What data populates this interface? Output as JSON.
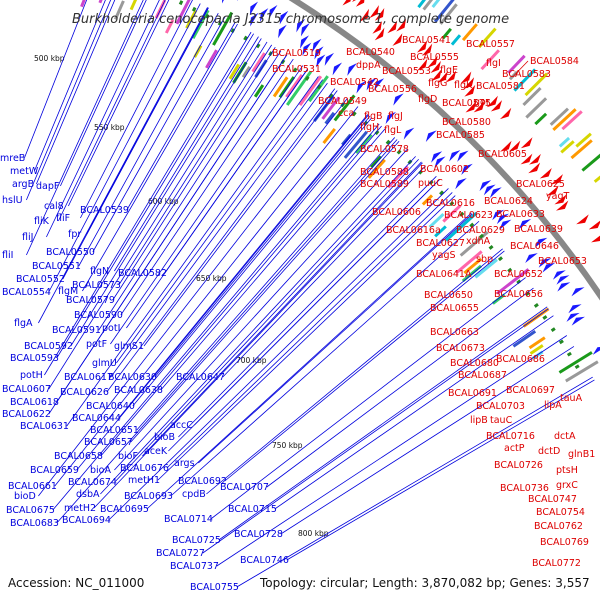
{
  "title": "Burkholderia cenocepacia J2315 chromosome 1, complete genome",
  "accession": "Accession: NC_011000",
  "summary": "Topology: circular; Length: 3,870,082 bp; Genes: 3,557",
  "colors": {
    "left_labels": "#0000dd",
    "right_labels": "#dd0000",
    "backbone": "#888888"
  },
  "scale_ticks": [
    "500 kbp",
    "550 kbp",
    "600 kbp",
    "650 kbp",
    "700 kbp",
    "750 kbp",
    "800 kbp"
  ],
  "left_labels": [
    [
      "mreB",
      0,
      161
    ],
    [
      "metW",
      10,
      174
    ],
    [
      "argB",
      12,
      187
    ],
    [
      "dapF",
      36,
      189
    ],
    [
      "hslU",
      2,
      203
    ],
    [
      "cal8",
      44,
      209
    ],
    [
      "fliK",
      34,
      224
    ],
    [
      "fliF",
      56,
      221
    ],
    [
      "BCAL0539",
      80,
      213
    ],
    [
      "fliJ",
      22,
      240
    ],
    [
      "fpr",
      68,
      237
    ],
    [
      "fliI",
      2,
      258
    ],
    [
      "BCAL0550",
      46,
      255
    ],
    [
      "BCAL0551",
      32,
      269
    ],
    [
      "flgN",
      90,
      274
    ],
    [
      "BCAL0582",
      118,
      276
    ],
    [
      "BCAL0552",
      16,
      282
    ],
    [
      "BCAL0573",
      72,
      288
    ],
    [
      "BCAL0554",
      2,
      295
    ],
    [
      "flgM",
      58,
      294
    ],
    [
      "BCAL0579",
      66,
      303
    ],
    [
      "BCAL0590",
      74,
      318
    ],
    [
      "flgA",
      14,
      326
    ],
    [
      "BCAL0591",
      52,
      333
    ],
    [
      "potI",
      102,
      331
    ],
    [
      "BCAL0592",
      24,
      349
    ],
    [
      "potF",
      86,
      347
    ],
    [
      "glmS1",
      114,
      349
    ],
    [
      "BCAL0593",
      10,
      361
    ],
    [
      "glmU",
      92,
      366
    ],
    [
      "potH",
      20,
      378
    ],
    [
      "BCAL0617",
      64,
      380
    ],
    [
      "BCAL0630",
      108,
      380
    ],
    [
      "BCAL0647",
      176,
      380
    ],
    [
      "BCAL0607",
      2,
      392
    ],
    [
      "BCAL0626",
      60,
      395
    ],
    [
      "BCAL0638",
      114,
      393
    ],
    [
      "BCAL0618",
      10,
      405
    ],
    [
      "BCAL0640",
      86,
      409
    ],
    [
      "BCAL0622",
      2,
      417
    ],
    [
      "BCAL0644",
      72,
      421
    ],
    [
      "BCAL0631",
      20,
      429
    ],
    [
      "accC",
      170,
      428
    ],
    [
      "BCAL0651",
      90,
      433
    ],
    [
      "bioB",
      154,
      440
    ],
    [
      "BCAL0658",
      54,
      459
    ],
    [
      "BCAL0657",
      84,
      445
    ],
    [
      "bioF",
      118,
      459
    ],
    [
      "aceK",
      144,
      454
    ],
    [
      "args",
      174,
      466
    ],
    [
      "BCAL0659",
      30,
      473
    ],
    [
      "bioA",
      90,
      473
    ],
    [
      "BCAL0676",
      120,
      471
    ],
    [
      "BCAL0661",
      8,
      489
    ],
    [
      "BCAL0674",
      68,
      485
    ],
    [
      "metH1",
      128,
      483
    ],
    [
      "BCAL0692",
      178,
      484
    ],
    [
      "BCAL0707",
      220,
      490
    ],
    [
      "bioD",
      14,
      499
    ],
    [
      "dsbA",
      76,
      497
    ],
    [
      "BCAL0693",
      124,
      499
    ],
    [
      "cpdB",
      182,
      497
    ],
    [
      "BCAL0675",
      6,
      513
    ],
    [
      "metH2",
      64,
      511
    ],
    [
      "BCAL0695",
      100,
      512
    ],
    [
      "BCAL0715",
      228,
      512
    ],
    [
      "BCAL0683",
      10,
      526
    ],
    [
      "BCAL0694",
      62,
      523
    ],
    [
      "BCAL0714",
      164,
      522
    ],
    [
      "BCAL0728",
      234,
      537
    ],
    [
      "BCAL0725",
      172,
      543
    ],
    [
      "BCAL0727",
      156,
      556
    ],
    [
      "BCAL0746",
      240,
      563
    ],
    [
      "BCAL0737",
      170,
      569
    ],
    [
      "BCAL0755",
      190,
      590
    ]
  ],
  "right_labels": [
    [
      "BCAL0519",
      272,
      56
    ],
    [
      "BCAL0540",
      346,
      55
    ],
    [
      "BCAL0541",
      402,
      43
    ],
    [
      "BCAL0557",
      466,
      47
    ],
    [
      "BCAL0555",
      410,
      60
    ],
    [
      "BCAL0584",
      530,
      64
    ],
    [
      "BCAL0531",
      272,
      72
    ],
    [
      "dppA",
      356,
      68
    ],
    [
      "BCAL0553",
      382,
      74
    ],
    [
      "flgE",
      440,
      73
    ],
    [
      "flgI",
      486,
      66
    ],
    [
      "BCAL0583",
      502,
      77
    ],
    [
      "BCAL0542",
      330,
      85
    ],
    [
      "flgG",
      428,
      86
    ],
    [
      "flgK",
      454,
      88
    ],
    [
      "BCAL0581",
      476,
      89
    ],
    [
      "BCAL0556",
      368,
      92
    ],
    [
      "flgD",
      418,
      102
    ],
    [
      "BCAL0575",
      442,
      106
    ],
    [
      "gor",
      474,
      105
    ],
    [
      "BCAL0549",
      318,
      104
    ],
    [
      "cca",
      338,
      116
    ],
    [
      "flgB",
      364,
      119
    ],
    [
      "flgJ",
      388,
      119
    ],
    [
      "BCAL0580",
      442,
      125
    ],
    [
      "flgH",
      360,
      130
    ],
    [
      "flgL",
      384,
      133
    ],
    [
      "BCAL0585",
      436,
      138
    ],
    [
      "BCAL0578",
      360,
      152
    ],
    [
      "BCAL0605",
      478,
      157
    ],
    [
      "BCAL0588",
      360,
      175
    ],
    [
      "BCAL0602",
      420,
      172
    ],
    [
      "BCAL0589",
      360,
      187
    ],
    [
      "puuC",
      418,
      186
    ],
    [
      "BCAL0625",
      516,
      187
    ],
    [
      "yagT",
      546,
      199
    ],
    [
      "BCAL0616",
      426,
      206
    ],
    [
      "BCAL0624",
      484,
      204
    ],
    [
      "BCAL0606",
      372,
      215
    ],
    [
      "BCAL0623",
      444,
      218
    ],
    [
      "BCAL0633",
      496,
      217
    ],
    [
      "BCAL0616a",
      386,
      233
    ],
    [
      "BCAL0629",
      456,
      233
    ],
    [
      "BCAL0639",
      514,
      232
    ],
    [
      "BCAL0627",
      416,
      246
    ],
    [
      "xdhA",
      466,
      244
    ],
    [
      "BCAL0646",
      510,
      249
    ],
    [
      "yagS",
      432,
      258
    ],
    [
      "sbp",
      476,
      262
    ],
    [
      "BCAL0653",
      538,
      264
    ],
    [
      "BCAL0641A",
      416,
      277
    ],
    [
      "BCAL0652",
      494,
      277
    ],
    [
      "BCAL0650",
      424,
      298
    ],
    [
      "BCAL0656",
      494,
      297
    ],
    [
      "BCAL0655",
      430,
      311
    ],
    [
      "BCAL0663",
      430,
      335
    ],
    [
      "BCAL0673",
      436,
      351
    ],
    [
      "BCAL0686",
      496,
      362
    ],
    [
      "BCAL0680",
      450,
      366
    ],
    [
      "BCAL0687",
      458,
      378
    ],
    [
      "BCAL0697",
      506,
      393
    ],
    [
      "tauA",
      560,
      401
    ],
    [
      "BCAL0691",
      448,
      396
    ],
    [
      "BCAL0703",
      476,
      409
    ],
    [
      "lipA",
      544,
      408
    ],
    [
      "lipB",
      470,
      423
    ],
    [
      "tauC",
      490,
      423
    ],
    [
      "BCAL0716",
      486,
      439
    ],
    [
      "dctA",
      554,
      439
    ],
    [
      "actP",
      504,
      451
    ],
    [
      "dctD",
      538,
      454
    ],
    [
      "glnB1",
      568,
      457
    ],
    [
      "BCAL0726",
      494,
      468
    ],
    [
      "ptsH",
      556,
      473
    ],
    [
      "BCAL0736",
      500,
      491
    ],
    [
      "grxC",
      556,
      488
    ],
    [
      "BCAL0747",
      528,
      502
    ],
    [
      "BCAL0754",
      536,
      515
    ],
    [
      "BCAL0762",
      534,
      529
    ],
    [
      "BCAL0769",
      540,
      545
    ],
    [
      "BCAL0772",
      532,
      566
    ]
  ]
}
